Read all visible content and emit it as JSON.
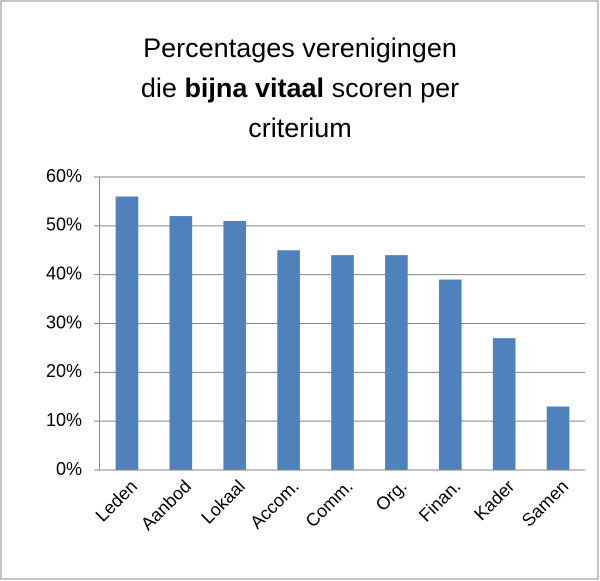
{
  "chart_data": {
    "type": "bar",
    "title": [
      [
        "Percentages verenigingen"
      ],
      [
        "die",
        "bijna vitaal",
        "scoren per"
      ],
      [
        "criterium"
      ]
    ],
    "title_bold": [
      [
        1,
        1
      ]
    ],
    "categories": [
      "Leden",
      "Aanbod",
      "Lokaal",
      "Accom.",
      "Comm.",
      "Org.",
      "Finan.",
      "Kader",
      "Samen"
    ],
    "values": [
      56,
      52,
      51,
      45,
      44,
      44,
      39,
      27,
      13
    ],
    "color": "#4f81bd",
    "ylim": [
      0,
      60
    ],
    "yticks": [
      {
        "value": 0,
        "label": "0%"
      },
      {
        "value": 10,
        "label": "10%"
      },
      {
        "value": 20,
        "label": "20%"
      },
      {
        "value": 30,
        "label": "30%"
      },
      {
        "value": 40,
        "label": "40%"
      },
      {
        "value": 50,
        "label": "50%"
      },
      {
        "value": 60,
        "label": "60%"
      }
    ],
    "grid": true
  }
}
